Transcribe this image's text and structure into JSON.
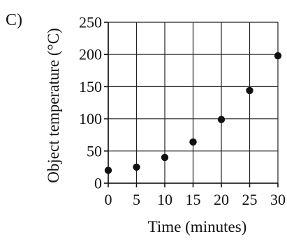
{
  "panel_label": "C)",
  "chart_data": {
    "type": "scatter",
    "title": "",
    "xlabel": "Time (minutes)",
    "ylabel": "Object temperature (°C)",
    "xlim": [
      0,
      30
    ],
    "ylim": [
      0,
      250
    ],
    "x_ticks": [
      0,
      5,
      10,
      15,
      20,
      25,
      30
    ],
    "y_ticks": [
      0,
      50,
      100,
      150,
      200,
      250
    ],
    "grid": true,
    "legend": "none",
    "marker_color": "#111111",
    "series": [
      {
        "x": [
          0,
          5,
          10,
          15,
          20,
          25,
          30
        ],
        "y": [
          20,
          25,
          40,
          64,
          99,
          144,
          198
        ]
      }
    ]
  }
}
